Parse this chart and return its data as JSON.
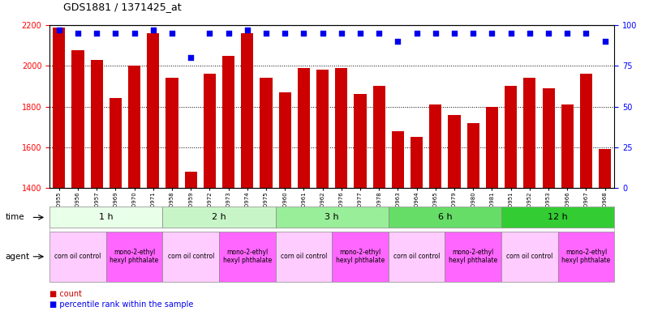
{
  "title": "GDS1881 / 1371425_at",
  "samples": [
    "GSM100955",
    "GSM100956",
    "GSM100957",
    "GSM100969",
    "GSM100970",
    "GSM100971",
    "GSM100958",
    "GSM100959",
    "GSM100972",
    "GSM100973",
    "GSM100974",
    "GSM100975",
    "GSM100960",
    "GSM100961",
    "GSM100962",
    "GSM100976",
    "GSM100977",
    "GSM100978",
    "GSM100963",
    "GSM100964",
    "GSM100965",
    "GSM100979",
    "GSM100980",
    "GSM100981",
    "GSM100951",
    "GSM100952",
    "GSM100953",
    "GSM100966",
    "GSM100967",
    "GSM100968"
  ],
  "counts": [
    2185,
    2075,
    2030,
    1840,
    2000,
    2160,
    1940,
    1480,
    1960,
    2050,
    2160,
    1940,
    1870,
    1990,
    1980,
    1990,
    1860,
    1900,
    1680,
    1650,
    1810,
    1760,
    1720,
    1800,
    1900,
    1940,
    1890,
    1810,
    1960,
    1590
  ],
  "percentile_ranks": [
    97,
    95,
    95,
    95,
    95,
    97,
    95,
    80,
    95,
    95,
    97,
    95,
    95,
    95,
    95,
    95,
    95,
    95,
    90,
    95,
    95,
    95,
    95,
    95,
    95,
    95,
    95,
    95,
    95,
    90
  ],
  "ylim_left": [
    1400,
    2200
  ],
  "ylim_right": [
    0,
    100
  ],
  "yticks_left": [
    1400,
    1600,
    1800,
    2000,
    2200
  ],
  "yticks_right": [
    0,
    25,
    50,
    75,
    100
  ],
  "bar_color": "#cc0000",
  "dot_color": "#0000ee",
  "grid_color": "#000000",
  "time_groups": [
    {
      "label": "1 h",
      "start": 0,
      "end": 6
    },
    {
      "label": "2 h",
      "start": 6,
      "end": 12
    },
    {
      "label": "3 h",
      "start": 12,
      "end": 18
    },
    {
      "label": "6 h",
      "start": 18,
      "end": 24
    },
    {
      "label": "12 h",
      "start": 24,
      "end": 30
    }
  ],
  "time_group_colors": [
    "#e8ffe8",
    "#c8f5c8",
    "#99ee99",
    "#66dd66",
    "#33cc33"
  ],
  "agent_groups": [
    {
      "label": "corn oil control",
      "start": 0,
      "end": 3,
      "color": "#ffccff"
    },
    {
      "label": "mono-2-ethyl\nhexyl phthalate",
      "start": 3,
      "end": 6,
      "color": "#ff66ff"
    },
    {
      "label": "corn oil control",
      "start": 6,
      "end": 9,
      "color": "#ffccff"
    },
    {
      "label": "mono-2-ethyl\nhexyl phthalate",
      "start": 9,
      "end": 12,
      "color": "#ff66ff"
    },
    {
      "label": "corn oil control",
      "start": 12,
      "end": 15,
      "color": "#ffccff"
    },
    {
      "label": "mono-2-ethyl\nhexyl phthalate",
      "start": 15,
      "end": 18,
      "color": "#ff66ff"
    },
    {
      "label": "corn oil control",
      "start": 18,
      "end": 21,
      "color": "#ffccff"
    },
    {
      "label": "mono-2-ethyl\nhexyl phthalate",
      "start": 21,
      "end": 24,
      "color": "#ff66ff"
    },
    {
      "label": "corn oil control",
      "start": 24,
      "end": 27,
      "color": "#ffccff"
    },
    {
      "label": "mono-2-ethyl\nhexyl phthalate",
      "start": 27,
      "end": 30,
      "color": "#ff66ff"
    }
  ],
  "bg_color": "#ffffff",
  "legend_items": [
    {
      "label": "count",
      "color": "#cc0000"
    },
    {
      "label": "percentile rank within the sample",
      "color": "#0000ee"
    }
  ]
}
